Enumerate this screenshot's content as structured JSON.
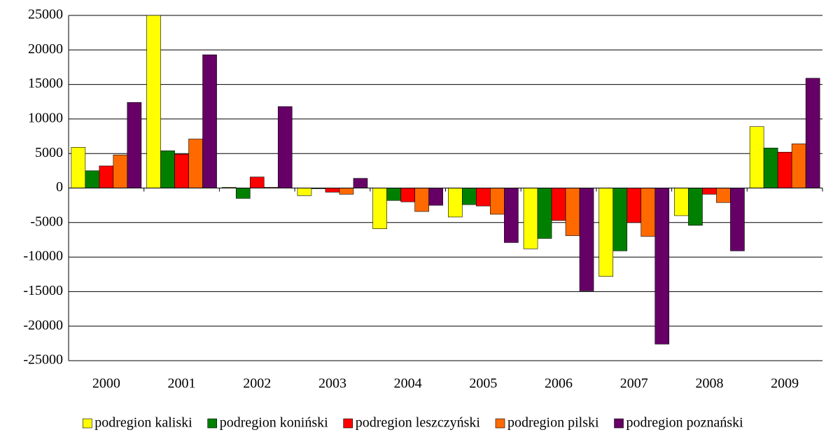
{
  "chart_data": {
    "type": "bar",
    "categories": [
      "2000",
      "2001",
      "2002",
      "2003",
      "2004",
      "2005",
      "2006",
      "2007",
      "2008",
      "2009"
    ],
    "series": [
      {
        "name": "podregion kaliski",
        "color": "#ffff00",
        "values": [
          5900,
          25000,
          100,
          -1100,
          -5900,
          -4200,
          -8800,
          -12800,
          -4000,
          8900
        ]
      },
      {
        "name": "podregion koniński",
        "color": "#008000",
        "values": [
          2500,
          5400,
          -1500,
          -100,
          -1800,
          -2400,
          -7300,
          -9100,
          -5400,
          5800
        ]
      },
      {
        "name": "podregion leszczyński",
        "color": "#ff0000",
        "values": [
          3200,
          4900,
          1600,
          -600,
          -2000,
          -2600,
          -4700,
          -5000,
          -900,
          5200
        ]
      },
      {
        "name": "podregion pilski",
        "color": "#ff6a00",
        "values": [
          4800,
          7100,
          100,
          -900,
          -3400,
          -3800,
          -6900,
          -7000,
          -2100,
          6400
        ]
      },
      {
        "name": "podregion poznański",
        "color": "#660066",
        "values": [
          12400,
          19300,
          11800,
          1400,
          -2500,
          -7900,
          -14900,
          -22600,
          -9100,
          15900
        ]
      }
    ],
    "ylim": [
      -25000,
      25000
    ],
    "yticks": [
      -25000,
      -20000,
      -15000,
      -10000,
      -5000,
      0,
      5000,
      10000,
      15000,
      20000,
      25000
    ],
    "grid": true
  }
}
